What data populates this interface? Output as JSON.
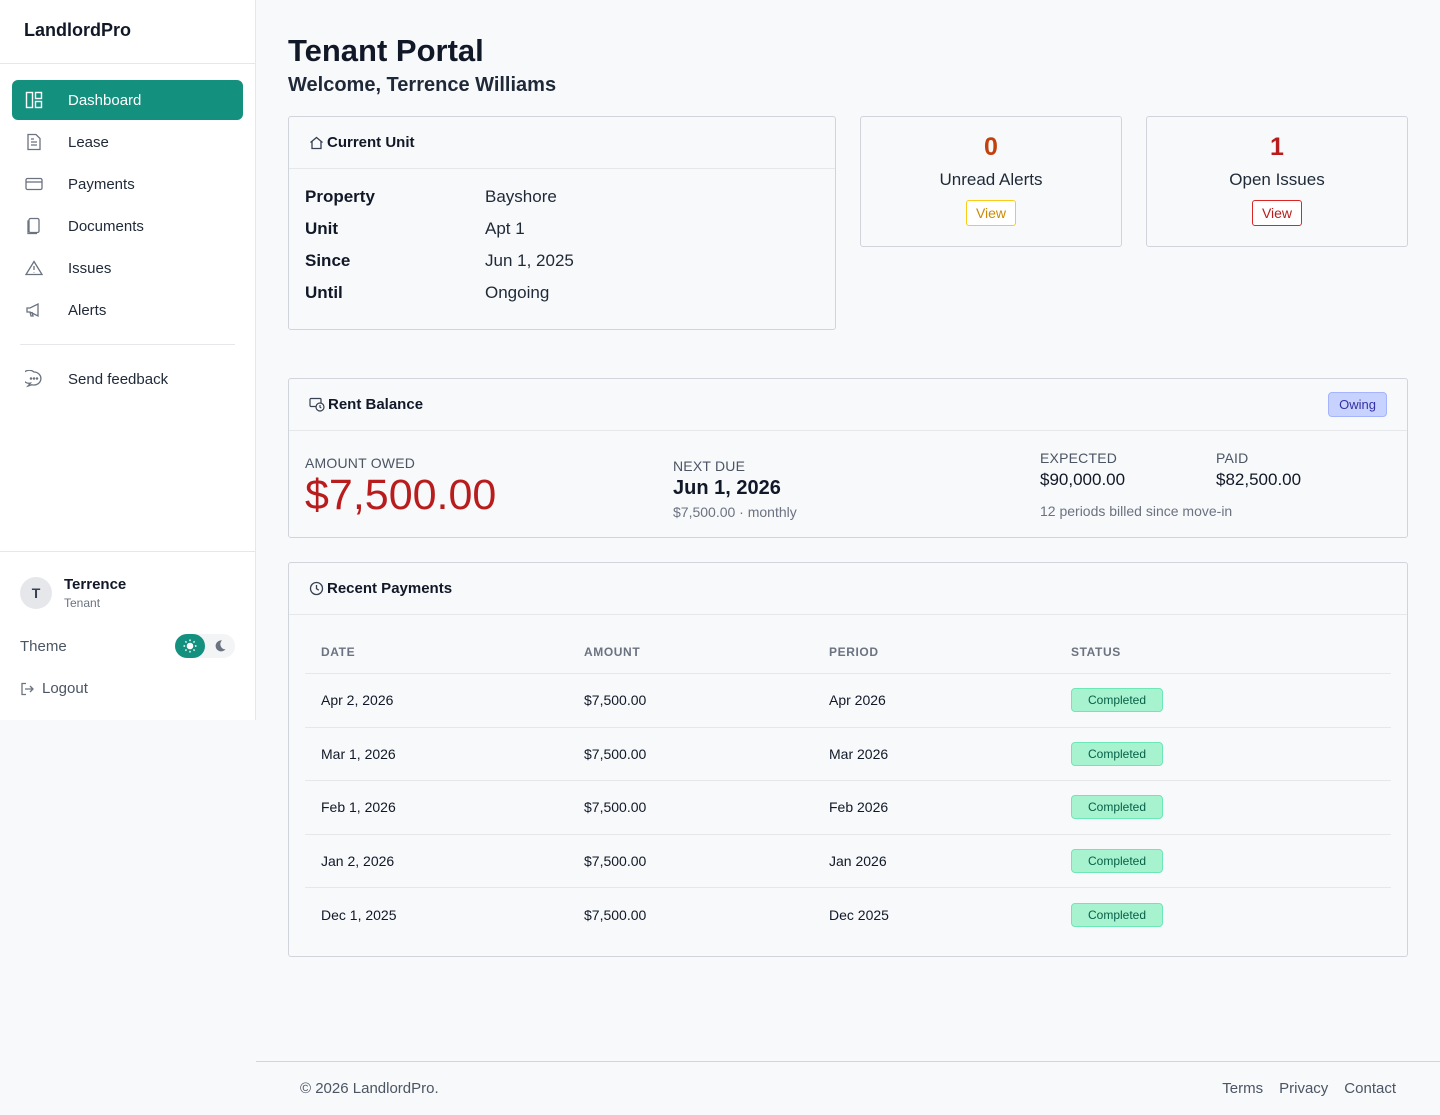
{
  "app": {
    "brand": "LandlordPro"
  },
  "sidebar": {
    "items": [
      {
        "label": "Dashboard",
        "icon": "dashboard-icon",
        "active": true
      },
      {
        "label": "Lease",
        "icon": "lease-icon"
      },
      {
        "label": "Payments",
        "icon": "credit-card-icon"
      },
      {
        "label": "Documents",
        "icon": "documents-icon"
      },
      {
        "label": "Issues",
        "icon": "warning-icon"
      },
      {
        "label": "Alerts",
        "icon": "megaphone-icon"
      }
    ],
    "feedback_label": "Send feedback",
    "user": {
      "initial": "T",
      "name": "Terrence",
      "role": "Tenant"
    },
    "theme_label": "Theme",
    "logout_label": "Logout"
  },
  "header": {
    "title": "Tenant Portal",
    "welcome": "Welcome, Terrence Williams"
  },
  "unit": {
    "title": "Current Unit",
    "rows": [
      {
        "k": "Property",
        "v": "Bayshore"
      },
      {
        "k": "Unit",
        "v": "Apt 1"
      },
      {
        "k": "Since",
        "v": "Jun 1, 2025"
      },
      {
        "k": "Until",
        "v": "Ongoing"
      }
    ]
  },
  "stats": {
    "alerts": {
      "count": "0",
      "label": "Unread Alerts",
      "button": "View",
      "color": "#c2410c"
    },
    "issues": {
      "count": "1",
      "label": "Open Issues",
      "button": "View",
      "color": "#b91c1c"
    }
  },
  "rent": {
    "title": "Rent Balance",
    "badge": "Owing",
    "owed_label": "AMOUNT OWED",
    "owed": "$7,500.00",
    "next_label": "NEXT DUE",
    "next_date": "Jun 1, 2026",
    "next_sub": "$7,500.00 · monthly",
    "expected_label": "EXPECTED",
    "expected": "$90,000.00",
    "paid_label": "PAID",
    "paid": "$82,500.00",
    "periods": "12 periods billed since move-in"
  },
  "payments": {
    "title": "Recent Payments",
    "columns": [
      "DATE",
      "AMOUNT",
      "PERIOD",
      "STATUS"
    ],
    "rows": [
      {
        "date": "Apr 2, 2026",
        "amount": "$7,500.00",
        "period": "Apr 2026",
        "status": "Completed"
      },
      {
        "date": "Mar 1, 2026",
        "amount": "$7,500.00",
        "period": "Mar 2026",
        "status": "Completed"
      },
      {
        "date": "Feb 1, 2026",
        "amount": "$7,500.00",
        "period": "Feb 2026",
        "status": "Completed"
      },
      {
        "date": "Jan 2, 2026",
        "amount": "$7,500.00",
        "period": "Jan 2026",
        "status": "Completed"
      },
      {
        "date": "Dec 1, 2025",
        "amount": "$7,500.00",
        "period": "Dec 2025",
        "status": "Completed"
      }
    ]
  },
  "footer": {
    "copyright": "© 2026 LandlordPro.",
    "links": [
      "Terms",
      "Privacy",
      "Contact"
    ]
  },
  "colors": {
    "accent": "#14907f",
    "danger": "#b91c1c",
    "warning": "#c2410c"
  }
}
